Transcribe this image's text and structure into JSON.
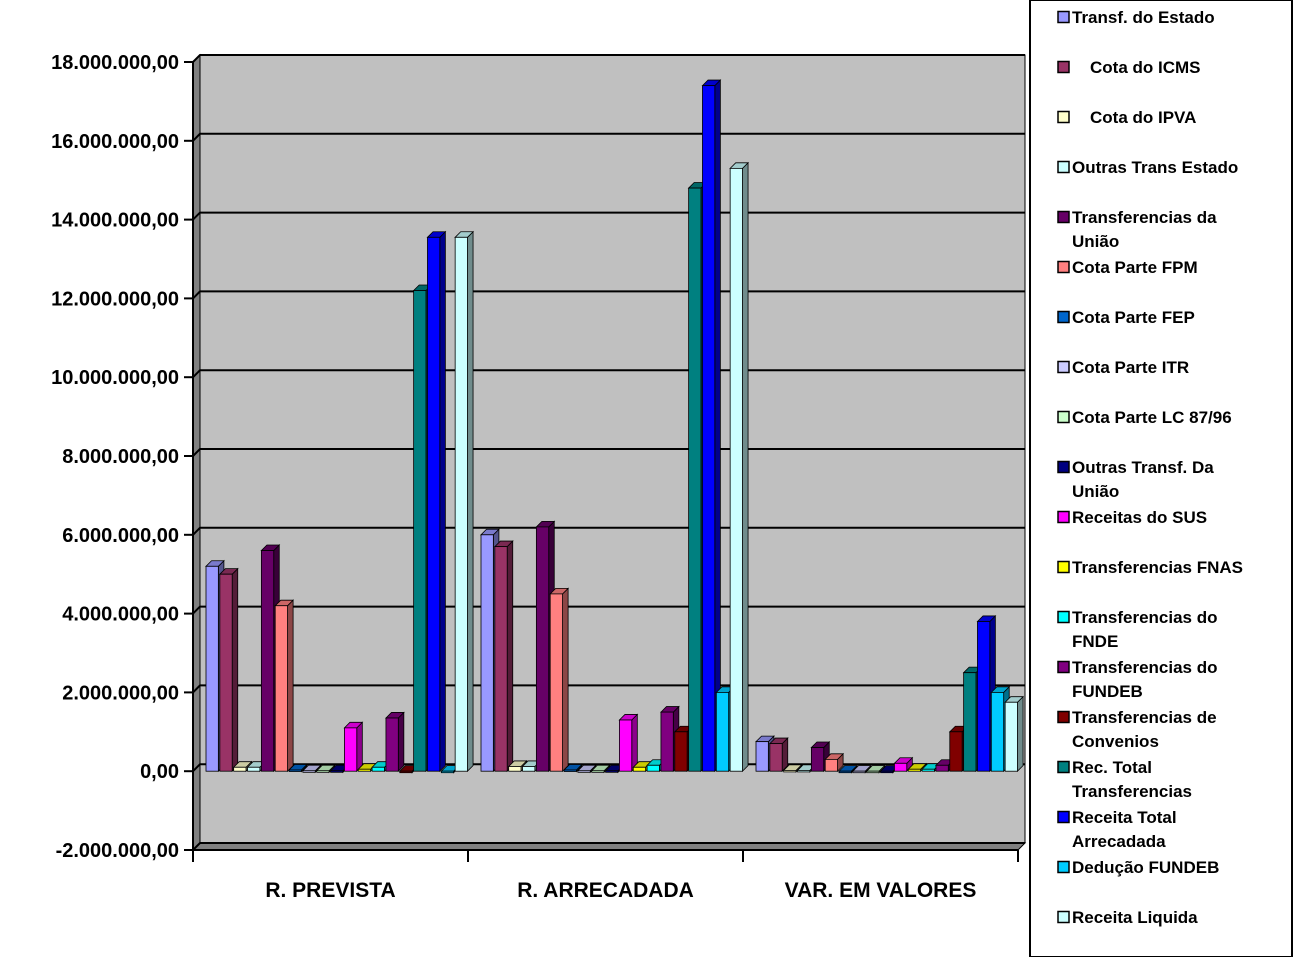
{
  "chart_data": {
    "type": "bar",
    "title": "",
    "xlabel": "",
    "ylabel": "",
    "ylim": [
      -2000000,
      18000000
    ],
    "yticks": [
      "18.000.000,00",
      "16.000.000,00",
      "14.000.000,00",
      "12.000.000,00",
      "10.000.000,00",
      "8.000.000,00",
      "6.000.000,00",
      "4.000.000,00",
      "2.000.000,00",
      "0,00",
      "-2.000.000,00"
    ],
    "ytick_values": [
      18000000,
      16000000,
      14000000,
      12000000,
      10000000,
      8000000,
      6000000,
      4000000,
      2000000,
      0,
      -2000000
    ],
    "grid": true,
    "legend_position": "right",
    "categories": [
      "R. PREVISTA",
      "R. ARRECADADA",
      "VAR. EM VALORES"
    ],
    "series": [
      {
        "name": "Transf. do Estado",
        "color": "#9999FF",
        "values": [
          5200000,
          6000000,
          750000
        ]
      },
      {
        "name": "Cota do ICMS",
        "color": "#993366",
        "values": [
          5000000,
          5700000,
          700000
        ]
      },
      {
        "name": "Cota do IPVA",
        "color": "#FFFFCC",
        "values": [
          100000,
          120000,
          20000
        ]
      },
      {
        "name": "Outras Trans Estado",
        "color": "#CCFFFF",
        "values": [
          100000,
          120000,
          20000
        ]
      },
      {
        "name": "Transferencias da\nUnião",
        "color": "#660066",
        "values": [
          5600000,
          6200000,
          600000
        ]
      },
      {
        "name": "Cota Parte FPM",
        "color": "#FF8080",
        "values": [
          4200000,
          4500000,
          300000
        ]
      },
      {
        "name": "Cota Parte FEP",
        "color": "#0066CC",
        "values": [
          30000,
          30000,
          0
        ]
      },
      {
        "name": "Cota Parte ITR",
        "color": "#CCCCFF",
        "values": [
          10000,
          10000,
          0
        ]
      },
      {
        "name": "Cota Parte LC 87/96",
        "color": "#CCFFCC",
        "values": [
          10000,
          10000,
          0
        ]
      },
      {
        "name": "Outras Transf. Da\nUnião",
        "color": "#000080",
        "values": [
          10000,
          10000,
          0
        ]
      },
      {
        "name": "Receitas do SUS",
        "color": "#FF00FF",
        "values": [
          1100000,
          1300000,
          200000
        ]
      },
      {
        "name": "Transferencias FNAS",
        "color": "#FFFF00",
        "values": [
          50000,
          100000,
          50000
        ]
      },
      {
        "name": "Transferencias do\nFNDE",
        "color": "#00FFFF",
        "values": [
          100000,
          150000,
          50000
        ]
      },
      {
        "name": "Transferencias do\nFUNDEB",
        "color": "#800080",
        "values": [
          1350000,
          1500000,
          150000
        ]
      },
      {
        "name": "Transferencias de\nConvenios",
        "color": "#800000",
        "values": [
          0,
          1000000,
          1000000
        ]
      },
      {
        "name": "Rec. Total\nTransferencias",
        "color": "#008080",
        "values": [
          12200000,
          14800000,
          2500000
        ]
      },
      {
        "name": "Receita Total\nArrecadada",
        "color": "#0000FF",
        "values": [
          13550000,
          17400000,
          3800000
        ]
      },
      {
        "name": "Dedução FUNDEB",
        "color": "#00CCFF",
        "values": [
          0,
          2000000,
          2000000
        ]
      },
      {
        "name": "Receita Liquida",
        "color": "#CCFFFF",
        "values": [
          13550000,
          15300000,
          1750000
        ]
      }
    ]
  }
}
